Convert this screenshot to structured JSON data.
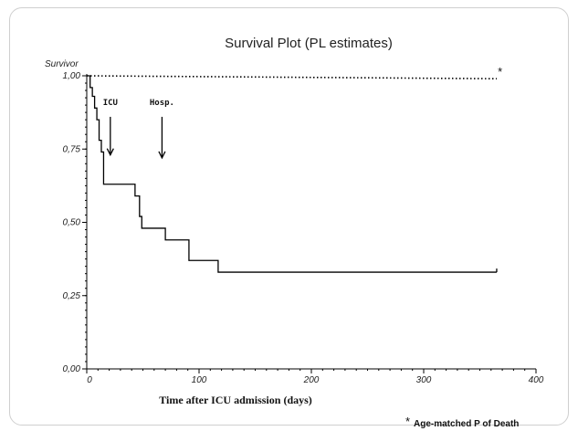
{
  "chart_data": {
    "type": "line",
    "title": "Survival Plot (PL estimates)",
    "ylabel": "Survivor",
    "xlabel": "Time after ICU admission (days)",
    "xlim": [
      0,
      400
    ],
    "ylim": [
      0,
      1
    ],
    "x_ticks": [
      0,
      100,
      200,
      300,
      400
    ],
    "x_tick_labels": [
      "0",
      "100",
      "200",
      "300",
      "400"
    ],
    "y_ticks": [
      0,
      0.25,
      0.5,
      0.75,
      1
    ],
    "y_tick_labels": [
      "0,00",
      "0,25",
      "0,50",
      "0,75",
      "1,00"
    ],
    "grid": false,
    "legend": "none",
    "series": [
      {
        "style": "step",
        "line": "solid",
        "color": "#000000",
        "x": [
          0,
          3,
          5,
          7,
          9,
          11,
          13,
          15,
          33,
          43,
          47,
          49,
          70,
          91,
          117,
          365
        ],
        "y": [
          1.0,
          0.96,
          0.93,
          0.89,
          0.85,
          0.78,
          0.74,
          0.63,
          0.63,
          0.59,
          0.52,
          0.48,
          0.44,
          0.37,
          0.33,
          0.33
        ]
      },
      {
        "style": "line",
        "line": "dotted",
        "color": "#000000",
        "x": [
          0,
          365
        ],
        "y": [
          1.0,
          0.99
        ]
      }
    ],
    "annotations": [
      {
        "text": "ICU",
        "x": 21,
        "y": 0.9
      },
      {
        "text": "Hosp.",
        "x": 67,
        "y": 0.9
      },
      {
        "text": "*",
        "x": 366,
        "y": 1.0
      }
    ],
    "arrows": [
      {
        "label": "ICU",
        "x": 21,
        "y_from": 0.86,
        "y_to": 0.73
      },
      {
        "label": "Hosp.",
        "x": 67,
        "y_from": 0.86,
        "y_to": 0.72
      }
    ],
    "footnote": {
      "marker": "*",
      "text": "Age-matched  P of Death"
    }
  }
}
